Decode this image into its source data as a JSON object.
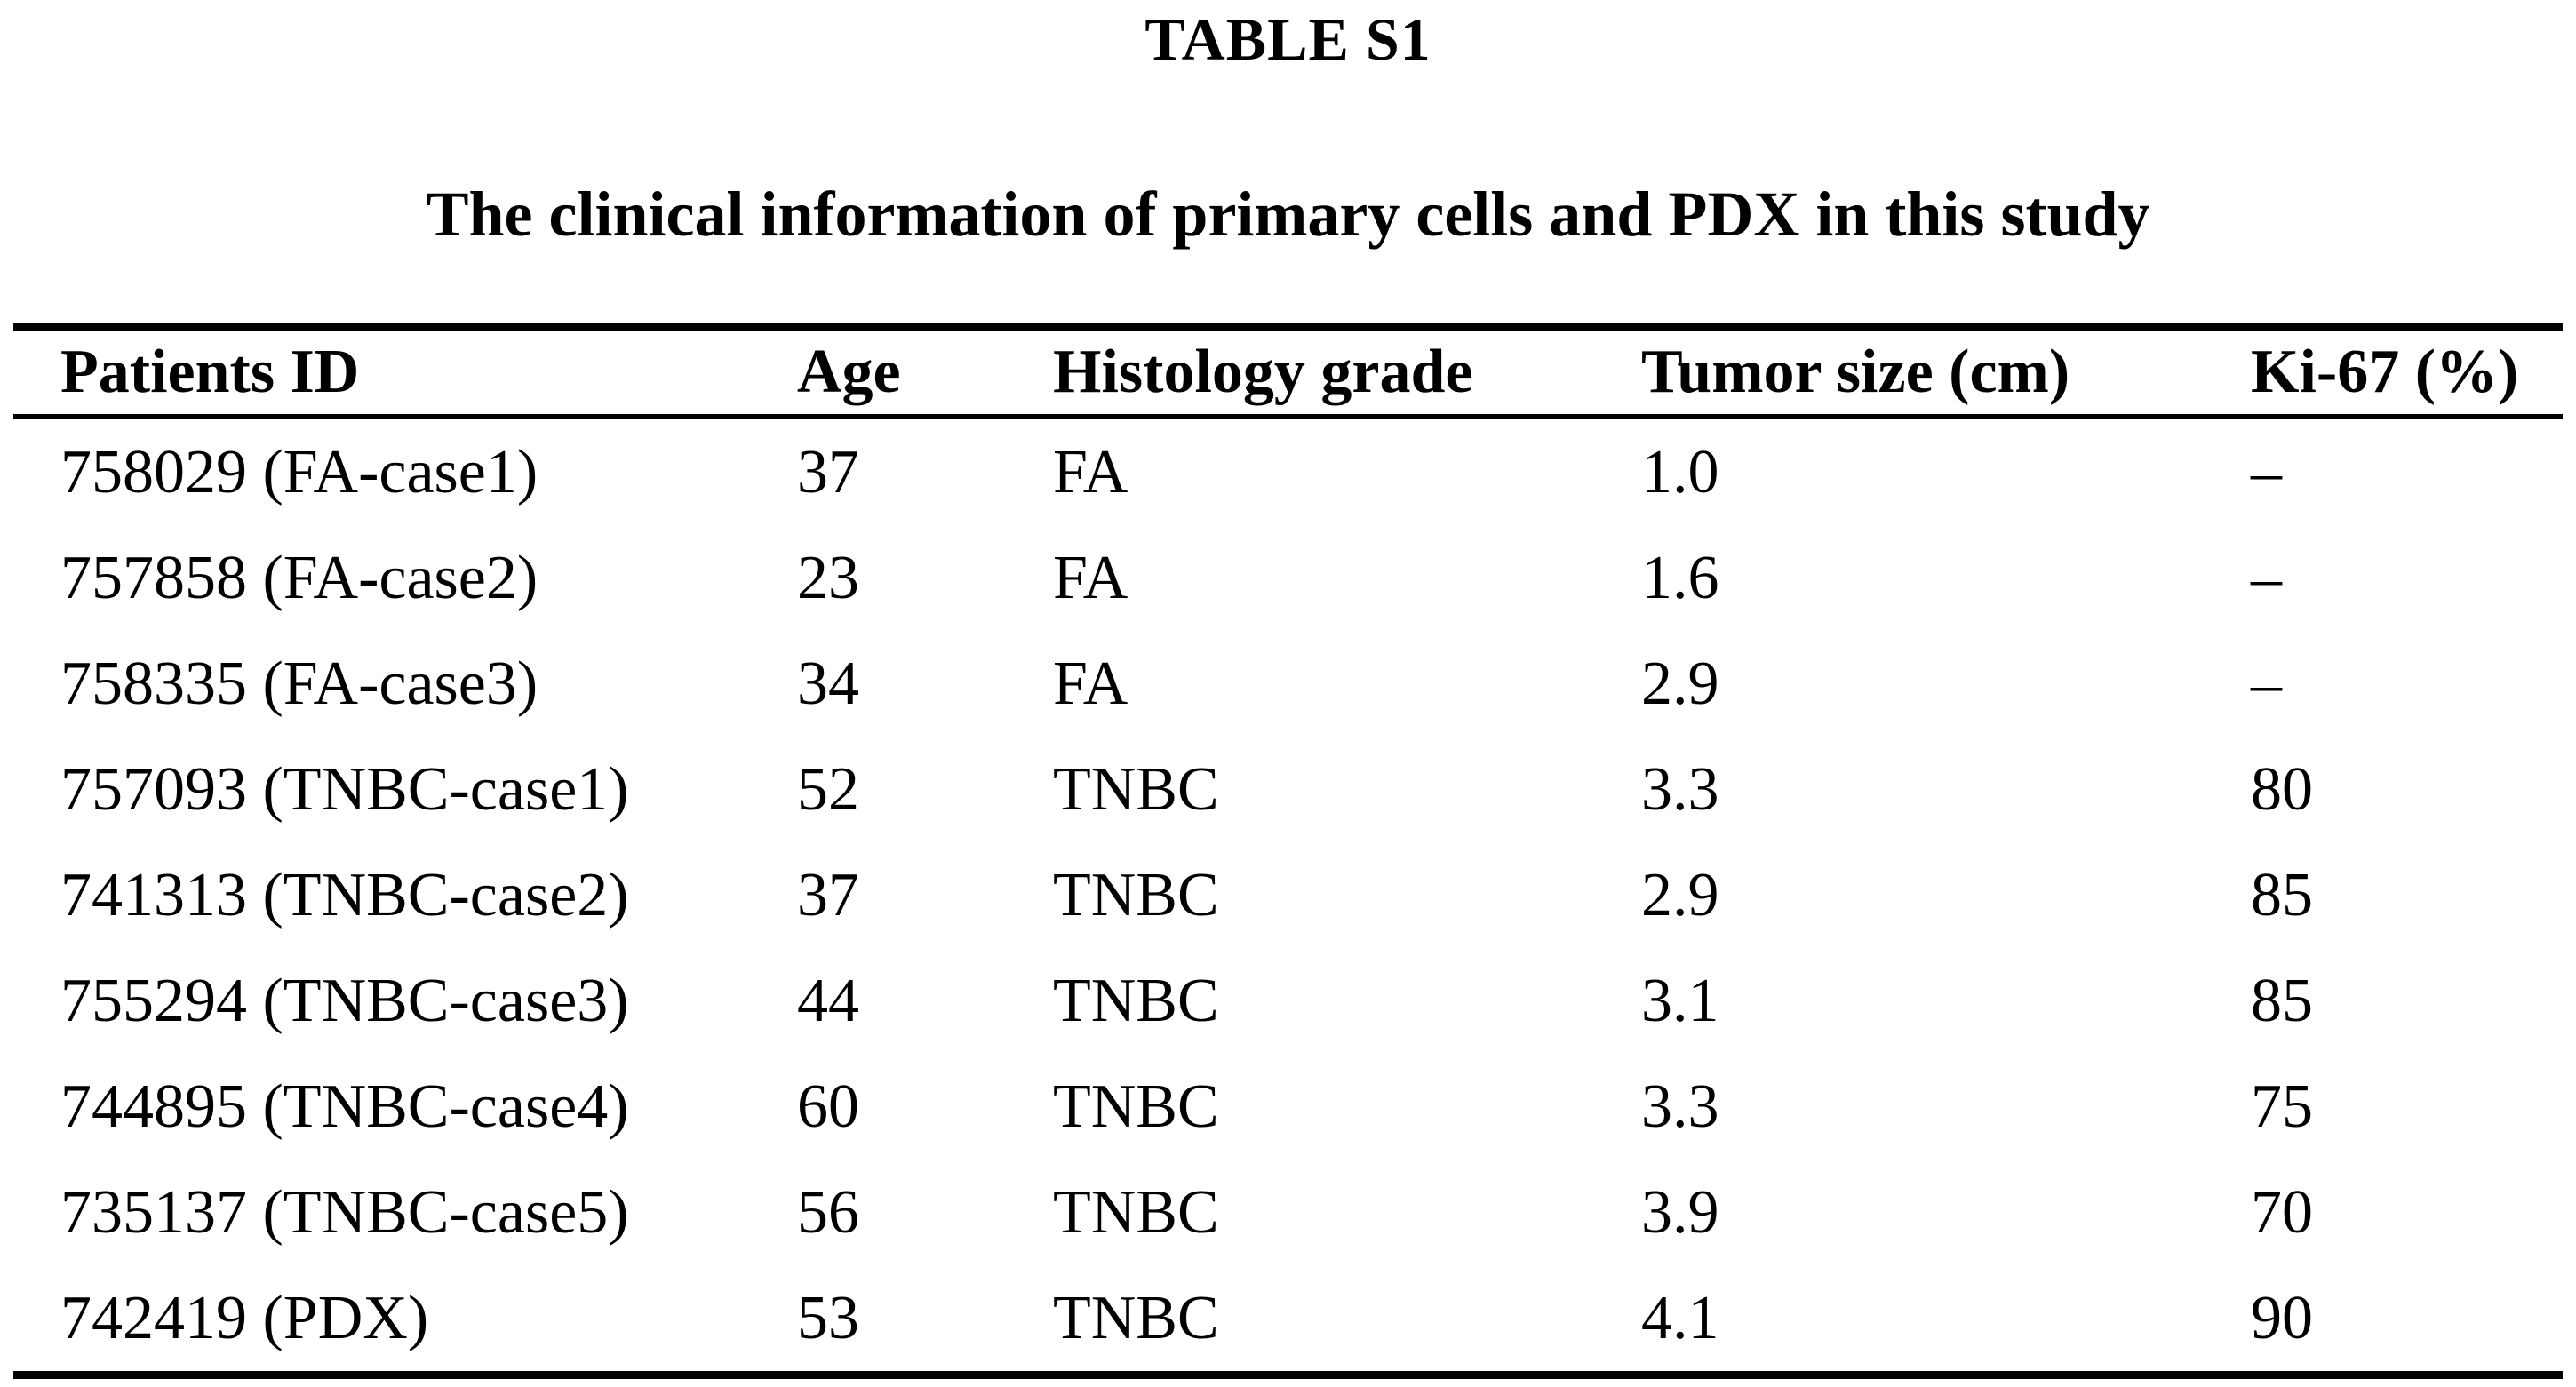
{
  "page": {
    "background": "#ffffff",
    "text_color": "#000000",
    "rule_color": "#000000"
  },
  "caption": {
    "label": "TABLE S1",
    "title": "The clinical information of primary cells and PDX in this study"
  },
  "table": {
    "columns": [
      "Patients ID",
      "Age",
      "Histology grade",
      "Tumor size (cm)",
      "Ki-67 (%)"
    ],
    "rows": [
      [
        "758029 (FA-case1)",
        "37",
        "FA",
        "1.0",
        "–"
      ],
      [
        "757858 (FA-case2)",
        "23",
        "FA",
        "1.6",
        "–"
      ],
      [
        "758335 (FA-case3)",
        "34",
        "FA",
        "2.9",
        "–"
      ],
      [
        "757093 (TNBC-case1)",
        "52",
        "TNBC",
        "3.3",
        "80"
      ],
      [
        "741313 (TNBC-case2)",
        "37",
        "TNBC",
        "2.9",
        "85"
      ],
      [
        "755294 (TNBC-case3)",
        "44",
        "TNBC",
        "3.1",
        "85"
      ],
      [
        "744895 (TNBC-case4)",
        "60",
        "TNBC",
        "3.3",
        "75"
      ],
      [
        "735137 (TNBC-case5)",
        "56",
        "TNBC",
        "3.9",
        "70"
      ],
      [
        "742419 (PDX)",
        "53",
        "TNBC",
        "4.1",
        "90"
      ]
    ]
  }
}
